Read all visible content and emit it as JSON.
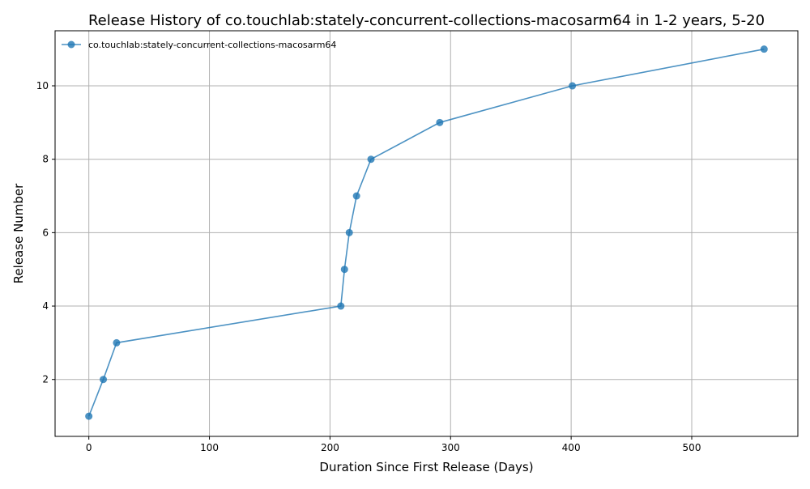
{
  "chart_data": {
    "type": "line",
    "title": "Release History of co.touchlab:stately-concurrent-collections-macosarm64 in 1-2 years, 5-20",
    "xlabel": "Duration Since First Release (Days)",
    "ylabel": "Release Number",
    "xlim": [
      -28,
      588
    ],
    "ylim": [
      0.45,
      11.5
    ],
    "xticks": [
      0,
      100,
      200,
      300,
      400,
      500
    ],
    "yticks": [
      2,
      4,
      6,
      8,
      10
    ],
    "grid": true,
    "legend_position": "top-left",
    "series": [
      {
        "name": "co.touchlab:stately-concurrent-collections-macosarm64",
        "color": "#1f77b4",
        "x": [
          0,
          12,
          23,
          209,
          212,
          216,
          222,
          234,
          291,
          401,
          560
        ],
        "y": [
          1,
          2,
          3,
          4,
          5,
          6,
          7,
          8,
          9,
          10,
          11
        ]
      }
    ]
  }
}
